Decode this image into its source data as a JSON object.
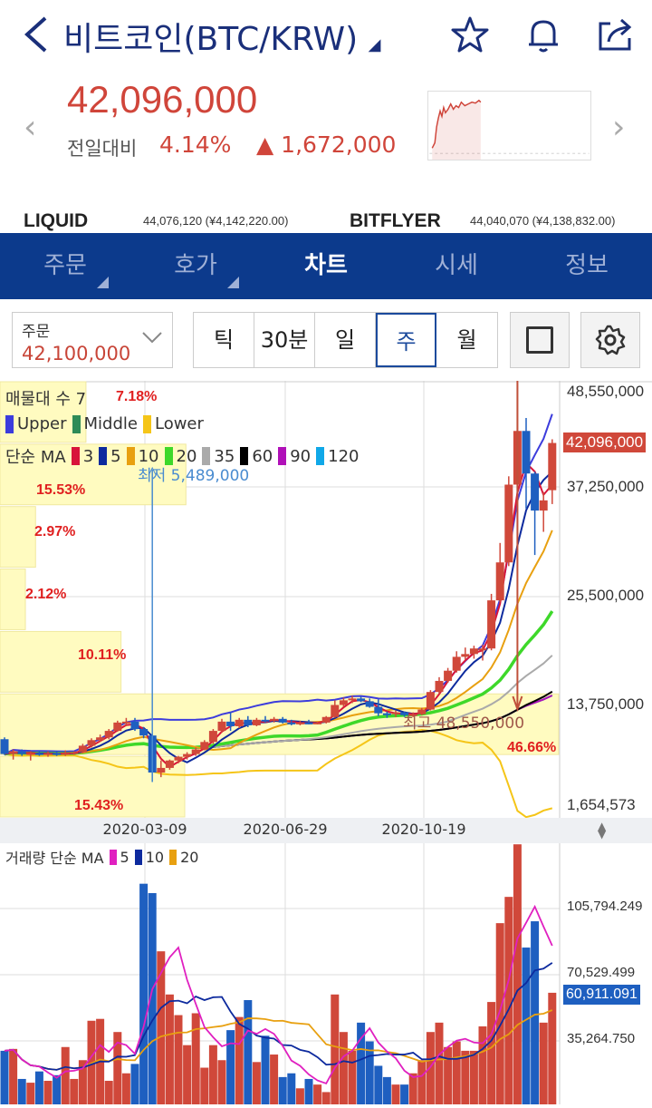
{
  "header": {
    "title": "비트코인(BTC/KRW)",
    "icons": [
      "back-arrow-icon",
      "star-icon",
      "bell-icon",
      "share-icon"
    ]
  },
  "quote": {
    "price": "42,096,000",
    "change_label": "전일대비",
    "change_pct": "4.14%",
    "change_abs": "▲ 1,672,000"
  },
  "exchanges": [
    {
      "name": "LIQUID",
      "value": "44,076,120 (¥4,142,220.00)"
    },
    {
      "name": "BITFLYER",
      "value": "44,040,070 (¥4,138,832.00)"
    }
  ],
  "nav": {
    "tabs": [
      {
        "label": "주문",
        "menu": true
      },
      {
        "label": "호가",
        "menu": true
      },
      {
        "label": "차트",
        "active": true
      },
      {
        "label": "시세"
      },
      {
        "label": "정보"
      }
    ]
  },
  "controls": {
    "order_label": "주문",
    "order_value": "42,100,000",
    "periods": [
      "틱",
      "30분",
      "일",
      "주",
      "월"
    ],
    "selected_period": "주"
  },
  "legend": {
    "volume_profile": "매물대 수 7",
    "bollinger": [
      {
        "name": "Upper",
        "color": "#3c3cdc"
      },
      {
        "name": "Middle",
        "color": "#2e8b57"
      },
      {
        "name": "Lower",
        "color": "#f5c518"
      }
    ],
    "ma_label": "단순 MA",
    "ma": [
      {
        "p": "3",
        "color": "#d8143a"
      },
      {
        "p": "5",
        "color": "#0d2a9e"
      },
      {
        "p": "10",
        "color": "#e8a010"
      },
      {
        "p": "20",
        "color": "#3ed82a"
      },
      {
        "p": "35",
        "color": "#aaaaaa"
      },
      {
        "p": "60",
        "color": "#000000"
      },
      {
        "p": "90",
        "color": "#b010b8"
      },
      {
        "p": "120",
        "color": "#10a8e8"
      }
    ],
    "volume_label": "거래량 단순 MA",
    "volume_ma": [
      {
        "p": "5",
        "color": "#e020c0"
      },
      {
        "p": "10",
        "color": "#0d2a9e"
      },
      {
        "p": "20",
        "color": "#e8a010"
      }
    ]
  },
  "annotations": {
    "low": "최저 5,489,000",
    "high": "최고 48,550,000"
  },
  "chart_data": {
    "type": "candlestick",
    "price_unit": "백만원 (KRW millions)",
    "y_ticks": [
      "48,550,000",
      "37,250,000",
      "25,500,000",
      "13,750,000",
      "1,654,573"
    ],
    "y_tick_values": [
      48.55,
      37.25,
      25.5,
      13.75,
      1.654573
    ],
    "current_price": "42,096,000",
    "x_ticks": [
      "2020-03-09",
      "2020-06-29",
      "2020-10-19"
    ],
    "volume_profile": [
      {
        "pct": "7.18%",
        "value": 7.18
      },
      {
        "pct": "15.53%",
        "value": 15.53
      },
      {
        "pct": "2.97%",
        "value": 2.97
      },
      {
        "pct": "2.12%",
        "value": 2.12
      },
      {
        "pct": "10.11%",
        "value": 10.11
      },
      {
        "pct": "46.66%",
        "value": 46.66
      },
      {
        "pct": "15.43%",
        "value": 15.43
      }
    ],
    "ohlc": [
      [
        10.1,
        10.3,
        8.4,
        8.5
      ],
      [
        8.5,
        9.0,
        7.9,
        8.8
      ],
      [
        8.8,
        9.0,
        8.3,
        8.5
      ],
      [
        8.5,
        8.8,
        7.8,
        8.6
      ],
      [
        8.6,
        8.9,
        8.3,
        8.4
      ],
      [
        8.4,
        8.8,
        8.2,
        8.6
      ],
      [
        8.6,
        8.8,
        8.3,
        8.5
      ],
      [
        8.5,
        8.9,
        8.3,
        8.6
      ],
      [
        8.6,
        8.8,
        8.4,
        8.7
      ],
      [
        8.7,
        9.6,
        8.6,
        9.4
      ],
      [
        9.4,
        10.2,
        9.2,
        10.0
      ],
      [
        10.0,
        10.6,
        9.8,
        10.3
      ],
      [
        10.3,
        11.2,
        10.1,
        11.0
      ],
      [
        11.0,
        12.1,
        10.9,
        11.9
      ],
      [
        11.9,
        12.4,
        11.5,
        12.0
      ],
      [
        12.0,
        12.4,
        11.0,
        11.2
      ],
      [
        11.2,
        11.4,
        10.2,
        10.5
      ],
      [
        10.5,
        10.6,
        5.49,
        6.5
      ],
      [
        6.5,
        7.8,
        6.0,
        7.0
      ],
      [
        7.0,
        7.9,
        6.8,
        7.8
      ],
      [
        7.8,
        8.3,
        7.5,
        8.2
      ],
      [
        8.2,
        8.7,
        7.9,
        8.5
      ],
      [
        8.5,
        9.2,
        8.3,
        9.0
      ],
      [
        9.0,
        10.0,
        8.9,
        9.8
      ],
      [
        9.8,
        11.2,
        9.6,
        11.0
      ],
      [
        11.0,
        12.3,
        10.8,
        12.0
      ],
      [
        12.0,
        13.0,
        11.0,
        11.5
      ],
      [
        11.5,
        12.4,
        11.3,
        12.2
      ],
      [
        12.2,
        12.6,
        11.4,
        11.6
      ],
      [
        11.6,
        12.4,
        11.5,
        12.2
      ],
      [
        12.2,
        12.6,
        11.9,
        12.1
      ],
      [
        12.1,
        12.5,
        11.9,
        12.3
      ],
      [
        12.3,
        12.5,
        11.8,
        11.9
      ],
      [
        11.9,
        12.2,
        11.6,
        11.8
      ],
      [
        11.8,
        12.1,
        11.6,
        11.9
      ],
      [
        11.9,
        12.2,
        11.7,
        11.8
      ],
      [
        11.8,
        12.0,
        11.7,
        11.9
      ],
      [
        11.9,
        12.6,
        11.8,
        12.5
      ],
      [
        12.5,
        14.3,
        12.4,
        13.8
      ],
      [
        13.8,
        14.6,
        13.6,
        14.3
      ],
      [
        14.3,
        14.8,
        14.0,
        14.5
      ],
      [
        14.5,
        14.7,
        14.1,
        14.2
      ],
      [
        14.2,
        14.5,
        13.5,
        13.6
      ],
      [
        13.6,
        14.4,
        12.6,
        12.9
      ],
      [
        12.9,
        13.1,
        12.4,
        12.8
      ],
      [
        12.8,
        13.2,
        12.5,
        13.0
      ],
      [
        13.0,
        13.1,
        12.5,
        12.7
      ],
      [
        12.7,
        13.0,
        12.5,
        12.8
      ],
      [
        12.8,
        13.5,
        12.7,
        13.3
      ],
      [
        13.3,
        15.4,
        13.2,
        15.2
      ],
      [
        15.2,
        16.8,
        15.0,
        16.4
      ],
      [
        16.4,
        17.8,
        16.2,
        17.5
      ],
      [
        17.5,
        19.6,
        17.3,
        19.0
      ],
      [
        19.0,
        20.0,
        18.7,
        19.3
      ],
      [
        19.3,
        20.2,
        18.8,
        19.9
      ],
      [
        19.9,
        20.3,
        18.6,
        19.9
      ],
      [
        19.9,
        25.8,
        19.7,
        25.1
      ],
      [
        25.1,
        31.3,
        24.9,
        29.2
      ],
      [
        29.2,
        38.5,
        28.8,
        37.6
      ],
      [
        37.6,
        48.55,
        32.0,
        43.4
      ],
      [
        43.4,
        44.8,
        35.0,
        38.8
      ],
      [
        38.8,
        39.0,
        30.0,
        34.8
      ],
      [
        34.8,
        36.8,
        32.5,
        35.9
      ],
      [
        37.0,
        42.5,
        35.5,
        42.1
      ]
    ],
    "volume_y_ticks": [
      "105,794.249",
      "70,529.499",
      "35,264.750"
    ],
    "volume_tick_values": [
      105794.249,
      70529.499,
      35264.75
    ],
    "current_volume": "60,911.091",
    "volume": [
      30000,
      31000,
      15000,
      13000,
      19000,
      14000,
      17000,
      32000,
      15000,
      25000,
      46000,
      47000,
      14000,
      40000,
      18000,
      23000,
      119000,
      114000,
      83000,
      60000,
      49000,
      33000,
      50000,
      21000,
      33000,
      25000,
      41000,
      48000,
      57000,
      24000,
      38000,
      28000,
      16000,
      18000,
      10000,
      15000,
      12000,
      8000,
      60000,
      40000,
      30000,
      45000,
      35000,
      22000,
      16000,
      12000,
      12000,
      18000,
      25000,
      40000,
      45000,
      32000,
      35000,
      30000,
      30000,
      43000,
      56000,
      98000,
      112000,
      140000,
      85000,
      99000,
      45000,
      60911
    ]
  }
}
